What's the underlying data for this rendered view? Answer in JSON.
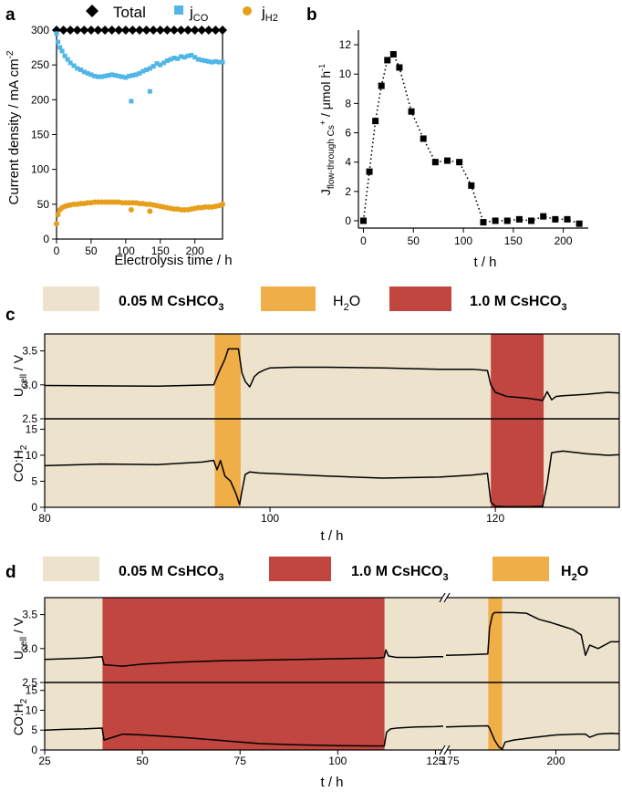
{
  "colors": {
    "beige": "#ede2cc",
    "water": "#f0ae48",
    "cs10": "#c0463f",
    "jco": "#4fb6e7",
    "jh2": "#e79e1a",
    "total": "#000000"
  },
  "panel_a": {
    "letter": "a",
    "legend": {
      "total": "Total",
      "jco_main": "j",
      "jco_sub": "CO",
      "jh2_main": "j",
      "jh2_sub": "H2"
    },
    "ylabel": "Current density / mA cm",
    "ylabel_sup": "-2",
    "xlabel": "Electrolysis time / h"
  },
  "panel_b": {
    "letter": "b",
    "ylabel_main": "J",
    "ylabel_sub": "flow-through Cs",
    "ylabel_sup": "+",
    "ylabel_rest": " / μmol h",
    "ylabel_sup2": "-1",
    "xlabel": "t / h"
  },
  "panel_c": {
    "letter": "c",
    "legend": {
      "a_main": "0.05 M CsHCO",
      "a_sub": "3",
      "b_main": "H",
      "b_sub": "2",
      "b_rest": "O",
      "c_main": "1.0 M CsHCO",
      "c_sub": "3"
    },
    "ylabel_top_main": "U",
    "ylabel_top_sub": "cell",
    "ylabel_top_rest": " / V",
    "ylabel_bot_main": "CO:H",
    "ylabel_bot_sub": "2",
    "xlabel": "t / h"
  },
  "panel_d": {
    "letter": "d",
    "legend": {
      "a_main": "0.05 M CsHCO",
      "a_sub": "3",
      "b_main": "1.0 M CsHCO",
      "b_sub": "3",
      "c_main": "H",
      "c_sub": "2",
      "c_rest": "O"
    },
    "ylabel_top_main": "U",
    "ylabel_top_sub": "cell",
    "ylabel_top_rest": " / V",
    "ylabel_bot_main": "CO:H",
    "ylabel_bot_sub": "2",
    "xlabel": "t / h"
  },
  "chart_data": [
    {
      "id": "a",
      "type": "scatter",
      "title": "",
      "xlabel": "Electrolysis time / h",
      "ylabel": "Current density / mA cm-2",
      "xlim": [
        0,
        240
      ],
      "ylim": [
        0,
        300
      ],
      "xticks": [
        0,
        50,
        100,
        150,
        200
      ],
      "yticks": [
        0,
        50,
        100,
        150,
        200,
        250,
        300
      ],
      "series": [
        {
          "name": "Total",
          "marker": "diamond",
          "x": [
            0,
            10,
            20,
            30,
            40,
            50,
            60,
            70,
            80,
            90,
            100,
            110,
            120,
            130,
            140,
            150,
            160,
            170,
            180,
            190,
            200,
            210,
            220,
            230,
            240
          ],
          "y": [
            300,
            300,
            300,
            300,
            300,
            300,
            300,
            300,
            300,
            300,
            300,
            300,
            300,
            300,
            300,
            300,
            300,
            300,
            300,
            300,
            300,
            300,
            300,
            300,
            300
          ]
        },
        {
          "name": "jCO",
          "marker": "square",
          "x": [
            0,
            2,
            5,
            8,
            12,
            16,
            20,
            25,
            30,
            35,
            40,
            45,
            50,
            55,
            60,
            65,
            70,
            75,
            80,
            85,
            90,
            95,
            100,
            105,
            110,
            115,
            120,
            125,
            130,
            135,
            140,
            145,
            150,
            155,
            160,
            165,
            170,
            175,
            180,
            185,
            190,
            195,
            200,
            205,
            210,
            215,
            220,
            225,
            230,
            235,
            240,
            108,
            135
          ],
          "y": [
            295,
            283,
            275,
            270,
            263,
            258,
            253,
            249,
            245,
            243,
            240,
            238,
            236,
            234,
            233,
            233,
            234,
            235,
            236,
            235,
            234,
            233,
            232,
            234,
            235,
            236,
            238,
            241,
            243,
            245,
            248,
            252,
            250,
            253,
            256,
            258,
            260,
            259,
            262,
            261,
            263,
            264,
            261,
            258,
            257,
            256,
            255,
            254,
            255,
            254,
            254,
            198,
            212
          ]
        },
        {
          "name": "jH2",
          "marker": "circle",
          "x": [
            0,
            2,
            5,
            8,
            12,
            16,
            20,
            25,
            30,
            35,
            40,
            45,
            50,
            55,
            60,
            65,
            70,
            75,
            80,
            85,
            90,
            95,
            100,
            105,
            110,
            115,
            120,
            125,
            130,
            135,
            140,
            145,
            150,
            155,
            160,
            165,
            170,
            175,
            180,
            185,
            190,
            195,
            200,
            205,
            210,
            215,
            220,
            225,
            230,
            235,
            240,
            108,
            135
          ],
          "y": [
            22,
            35,
            42,
            45,
            47,
            48,
            49,
            50,
            50,
            51,
            51,
            52,
            52,
            53,
            53,
            53,
            53,
            53,
            53,
            53,
            53,
            52,
            52,
            52,
            52,
            52,
            51,
            51,
            50,
            50,
            49,
            48,
            47,
            46,
            45,
            44,
            43,
            43,
            42,
            42,
            42,
            43,
            44,
            45,
            45,
            46,
            46,
            46,
            47,
            48,
            50,
            42,
            40
          ]
        }
      ]
    },
    {
      "id": "b",
      "type": "line",
      "title": "",
      "xlabel": "t / h",
      "ylabel": "Jflow-through Cs+ / μmol h-1",
      "xlim": [
        -5,
        225
      ],
      "ylim": [
        -0.5,
        13
      ],
      "xticks": [
        0,
        50,
        100,
        150,
        200
      ],
      "yticks": [
        0,
        2,
        4,
        6,
        8,
        10,
        12
      ],
      "series": [
        {
          "name": "Jflow-through Cs+",
          "marker": "square",
          "line": "dotted",
          "x": [
            0,
            6,
            12,
            18,
            24,
            30,
            36,
            48,
            60,
            72,
            84,
            96,
            108,
            120,
            132,
            144,
            156,
            168,
            180,
            192,
            204,
            216
          ],
          "y": [
            0,
            3.35,
            6.8,
            9.2,
            10.95,
            11.35,
            10.45,
            7.45,
            5.6,
            4.0,
            4.1,
            4.0,
            2.4,
            -0.1,
            0.0,
            0.0,
            0.1,
            0.0,
            0.3,
            0.1,
            0.1,
            -0.2
          ]
        }
      ]
    },
    {
      "id": "c",
      "type": "line",
      "title": "",
      "xlabel": "t / h",
      "xlim": [
        80,
        131
      ],
      "xticks": [
        80,
        100,
        120
      ],
      "regions": [
        {
          "label": "0.05 M CsHCO3",
          "x0": 80,
          "x1": 95.1
        },
        {
          "label": "H2O",
          "x0": 95.1,
          "x1": 97.4
        },
        {
          "label": "0.05 M CsHCO3",
          "x0": 97.4,
          "x1": 119.6
        },
        {
          "label": "1.0 M CsHCO3",
          "x0": 119.6,
          "x1": 124.3
        },
        {
          "label": "0.05 M CsHCO3",
          "x0": 124.3,
          "x1": 131
        }
      ],
      "subplots": [
        {
          "ylabel": "Ucell / V",
          "ylim": [
            2.5,
            3.75
          ],
          "yticks": [
            2.5,
            3.0,
            3.5
          ],
          "series": [
            {
              "name": "Ucell",
              "x": [
                80,
                90,
                95,
                95.5,
                96,
                96.3,
                97.2,
                97.5,
                97.8,
                98.2,
                98.6,
                99,
                99.5,
                100,
                102,
                105,
                110,
                115,
                118,
                119.3,
                119.6,
                120,
                121,
                123,
                124.2,
                124.6,
                125,
                125.4,
                126,
                128,
                130,
                131
              ],
              "y": [
                2.99,
                2.98,
                3.0,
                3.2,
                3.38,
                3.53,
                3.53,
                3.18,
                3.05,
                2.97,
                3.12,
                3.18,
                3.22,
                3.25,
                3.26,
                3.26,
                3.25,
                3.23,
                3.23,
                3.21,
                3.0,
                2.89,
                2.83,
                2.8,
                2.77,
                2.9,
                2.78,
                2.83,
                2.84,
                2.86,
                2.89,
                2.88
              ]
            }
          ]
        },
        {
          "ylabel": "CO:H2",
          "ylim": [
            0,
            17
          ],
          "yticks": [
            0,
            5,
            10,
            15
          ],
          "series": [
            {
              "name": "CO:H2",
              "x": [
                80,
                85,
                90,
                94,
                95,
                95.3,
                95.6,
                96,
                96.5,
                97,
                97.3,
                97.5,
                97.8,
                98.2,
                99,
                102,
                105,
                110,
                115,
                118,
                119.3,
                119.6,
                120,
                121,
                123,
                124.2,
                124.6,
                125,
                126,
                128,
                130,
                131
              ],
              "y": [
                8.0,
                8.3,
                8.2,
                8.7,
                9.0,
                7.2,
                9.0,
                6.0,
                5.0,
                2.5,
                0.5,
                3.0,
                6.3,
                6.8,
                6.6,
                6.3,
                6.0,
                5.6,
                5.8,
                6.2,
                6.5,
                1.0,
                0.2,
                0.1,
                0.1,
                0.2,
                4.5,
                10.5,
                10.8,
                10.3,
                10.0,
                10.1
              ]
            }
          ]
        }
      ]
    },
    {
      "id": "d",
      "type": "line",
      "title": "",
      "xlabel": "t / h",
      "xlim": [
        25,
        215
      ],
      "axis_break": [
        127,
        174
      ],
      "xticks": [
        25,
        50,
        75,
        100,
        125,
        175,
        200
      ],
      "regions": [
        {
          "label": "0.05 M CsHCO3",
          "x0": 25,
          "x1": 39.8
        },
        {
          "label": "1.0 M CsHCO3",
          "x0": 39.8,
          "x1": 112
        },
        {
          "label": "0.05 M CsHCO3",
          "x0": 112,
          "x1": 184
        },
        {
          "label": "H2O",
          "x0": 184,
          "x1": 187.3
        },
        {
          "label": "0.05 M CsHCO3",
          "x0": 187.3,
          "x1": 215
        }
      ],
      "subplots": [
        {
          "ylabel": "Ucell / V",
          "ylim": [
            2.5,
            3.75
          ],
          "yticks": [
            2.5,
            3.0,
            3.5
          ],
          "series": [
            {
              "name": "Ucell seg1",
              "x": [
                25,
                30,
                35,
                39.7,
                40.2,
                45,
                50,
                60,
                70,
                80,
                90,
                100,
                110,
                111.9,
                112.3,
                113,
                115,
                120,
                125,
                127
              ],
              "y": [
                2.84,
                2.85,
                2.86,
                2.88,
                2.76,
                2.74,
                2.77,
                2.8,
                2.82,
                2.83,
                2.84,
                2.85,
                2.86,
                2.87,
                2.98,
                2.89,
                2.87,
                2.87,
                2.88,
                2.88
              ]
            },
            {
              "name": "Ucell seg2",
              "x": [
                174,
                180,
                183.9,
                184.3,
                185,
                185.5,
                190,
                193,
                196,
                199,
                202,
                204,
                206,
                207,
                208,
                210,
                213,
                215
              ],
              "y": [
                2.9,
                2.91,
                2.92,
                3.3,
                3.5,
                3.53,
                3.53,
                3.52,
                3.43,
                3.38,
                3.32,
                3.28,
                3.2,
                2.9,
                3.05,
                3.0,
                3.1,
                3.1
              ]
            }
          ]
        },
        {
          "ylabel": "CO:H2",
          "ylim": [
            0,
            17
          ],
          "yticks": [
            0,
            5,
            10,
            15
          ],
          "series": [
            {
              "name": "CO:H2 seg1",
              "x": [
                25,
                30,
                35,
                39.7,
                40.2,
                45,
                50,
                60,
                70,
                80,
                90,
                100,
                110,
                111.9,
                112.5,
                113.5,
                115,
                120,
                125,
                127
              ],
              "y": [
                5.0,
                5.2,
                5.3,
                5.5,
                2.5,
                4.0,
                3.8,
                3.2,
                2.4,
                1.6,
                1.3,
                1.1,
                1.0,
                1.0,
                4.5,
                5.3,
                5.5,
                5.8,
                5.9,
                6.0
              ]
            },
            {
              "name": "CO:H2 seg2",
              "x": [
                174,
                180,
                183.9,
                184.3,
                185.5,
                186.5,
                187.3,
                188,
                190,
                195,
                200,
                205,
                207,
                208,
                210,
                213,
                215
              ],
              "y": [
                5.8,
                6.0,
                6.1,
                5.5,
                2.5,
                0.8,
                0.2,
                2.0,
                2.5,
                3.2,
                3.8,
                4.0,
                4.0,
                3.2,
                4.0,
                4.2,
                4.1
              ]
            }
          ]
        }
      ]
    }
  ]
}
